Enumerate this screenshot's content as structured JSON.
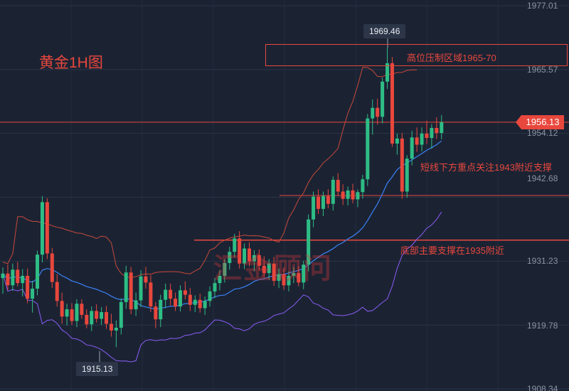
{
  "title": "黄金1H图",
  "watermark": "汇金顾问",
  "colors": {
    "background": "#1b2333",
    "up": "#2ebd85",
    "down": "#e8473d",
    "ma": "#3b82f6",
    "boll_upper": "#c8483a",
    "boll_lower": "#8b5cf6",
    "annotation": "#e8473d"
  },
  "last_price": "1956.13",
  "high_flag": "1969.46",
  "low_flag": "1915.13",
  "annotations": {
    "zone": "高位压制区域1965-70",
    "support1": "短线下方重点关注1943附近支撑",
    "support2": "底部主要支撑在1935附近"
  },
  "chart_data": {
    "type": "candlestick",
    "symbol": "黄金",
    "timeframe": "1H",
    "title": "黄金1H图",
    "y_ticks": [
      "1977.01",
      "1965.57",
      "1954.12",
      "1942.68",
      "1931.23",
      "1919.78",
      "1908.34"
    ],
    "ylim": [
      1908.34,
      1977.01
    ],
    "last_price": 1956.13,
    "marked_high": 1969.46,
    "marked_low": 1915.13,
    "levels": {
      "resistance_zone": [
        1965,
        1970
      ],
      "short_term_support": 1943,
      "main_support": 1935
    },
    "candles": [
      [
        1928.2,
        1930.1,
        1925.4,
        1929.0
      ],
      [
        1929.0,
        1930.6,
        1926.1,
        1926.9
      ],
      [
        1926.9,
        1930.8,
        1925.9,
        1929.7
      ],
      [
        1929.7,
        1931.1,
        1926.7,
        1927.3
      ],
      [
        1927.3,
        1929.8,
        1924.9,
        1928.6
      ],
      [
        1928.6,
        1929.9,
        1923.7,
        1924.5
      ],
      [
        1924.5,
        1927.7,
        1922.0,
        1926.3
      ],
      [
        1926.3,
        1933.1,
        1925.1,
        1932.4
      ],
      [
        1932.4,
        1942.9,
        1931.0,
        1941.8
      ],
      [
        1941.8,
        1942.5,
        1931.6,
        1932.6
      ],
      [
        1932.6,
        1933.6,
        1926.4,
        1927.5
      ],
      [
        1927.5,
        1928.9,
        1923.1,
        1924.1
      ],
      [
        1924.1,
        1925.6,
        1920.0,
        1921.3
      ],
      [
        1921.3,
        1923.6,
        1919.7,
        1922.6
      ],
      [
        1922.6,
        1923.7,
        1919.8,
        1920.5
      ],
      [
        1920.5,
        1924.4,
        1919.4,
        1923.6
      ],
      [
        1923.6,
        1924.4,
        1920.9,
        1921.6
      ],
      [
        1921.6,
        1922.6,
        1919.2,
        1919.9
      ],
      [
        1919.9,
        1923.1,
        1918.7,
        1922.3
      ],
      [
        1922.3,
        1923.5,
        1920.2,
        1920.9
      ],
      [
        1920.9,
        1923.0,
        1919.8,
        1922.1
      ],
      [
        1922.1,
        1923.2,
        1919.1,
        1920.0
      ],
      [
        1920.0,
        1921.8,
        1917.7,
        1918.8
      ],
      [
        1918.8,
        1920.6,
        1915.8,
        1919.3
      ],
      [
        1919.3,
        1924.6,
        1918.1,
        1923.9
      ],
      [
        1923.9,
        1930.4,
        1922.7,
        1929.2
      ],
      [
        1929.2,
        1930.2,
        1921.7,
        1922.6
      ],
      [
        1922.6,
        1925.6,
        1921.4,
        1924.2
      ],
      [
        1924.2,
        1929.6,
        1923.0,
        1928.5
      ],
      [
        1928.5,
        1930.2,
        1926.3,
        1927.4
      ],
      [
        1927.4,
        1928.7,
        1922.1,
        1923.1
      ],
      [
        1923.1,
        1923.9,
        1919.2,
        1920.8
      ],
      [
        1920.8,
        1925.2,
        1919.4,
        1924.3
      ],
      [
        1924.3,
        1927.2,
        1922.8,
        1926.1
      ],
      [
        1926.1,
        1927.2,
        1923.3,
        1924.5
      ],
      [
        1924.5,
        1925.6,
        1922.3,
        1923.1
      ],
      [
        1923.1,
        1926.9,
        1922.2,
        1926.0
      ],
      [
        1926.0,
        1927.6,
        1924.4,
        1925.2
      ],
      [
        1925.2,
        1926.4,
        1922.3,
        1923.4
      ],
      [
        1923.4,
        1925.1,
        1922.1,
        1924.3
      ],
      [
        1924.3,
        1925.4,
        1922.0,
        1922.8
      ],
      [
        1922.8,
        1924.9,
        1921.6,
        1924.1
      ],
      [
        1924.1,
        1926.7,
        1923.1,
        1925.8
      ],
      [
        1925.8,
        1928.2,
        1924.6,
        1927.3
      ],
      [
        1927.3,
        1929.6,
        1926.0,
        1928.6
      ],
      [
        1928.6,
        1931.6,
        1927.4,
        1930.9
      ],
      [
        1930.9,
        1933.8,
        1929.7,
        1932.9
      ],
      [
        1932.9,
        1936.1,
        1931.9,
        1935.3
      ],
      [
        1935.3,
        1936.6,
        1929.9,
        1930.8
      ],
      [
        1930.8,
        1934.4,
        1929.8,
        1933.5
      ],
      [
        1933.5,
        1934.6,
        1930.3,
        1931.2
      ],
      [
        1931.2,
        1933.2,
        1929.4,
        1932.3
      ],
      [
        1932.3,
        1933.3,
        1929.6,
        1930.4
      ],
      [
        1930.4,
        1932.1,
        1928.3,
        1929.1
      ],
      [
        1929.1,
        1931.6,
        1927.9,
        1930.8
      ],
      [
        1930.8,
        1932.0,
        1926.8,
        1927.7
      ],
      [
        1927.7,
        1929.9,
        1926.4,
        1928.9
      ],
      [
        1928.9,
        1930.1,
        1926.1,
        1926.9
      ],
      [
        1926.9,
        1929.4,
        1925.8,
        1928.6
      ],
      [
        1928.6,
        1930.2,
        1927.3,
        1929.1
      ],
      [
        1929.1,
        1930.3,
        1926.7,
        1927.4
      ],
      [
        1927.4,
        1931.3,
        1926.2,
        1930.6
      ],
      [
        1930.6,
        1939.6,
        1929.4,
        1938.7
      ],
      [
        1938.7,
        1943.7,
        1937.3,
        1942.8
      ],
      [
        1942.8,
        1944.1,
        1939.7,
        1940.6
      ],
      [
        1940.6,
        1943.7,
        1939.3,
        1942.9
      ],
      [
        1942.9,
        1944.1,
        1940.7,
        1941.5
      ],
      [
        1941.5,
        1946.4,
        1940.3,
        1945.8
      ],
      [
        1945.8,
        1947.0,
        1942.9,
        1943.7
      ],
      [
        1943.7,
        1945.0,
        1941.3,
        1942.4
      ],
      [
        1942.4,
        1944.6,
        1941.2,
        1943.9
      ],
      [
        1943.9,
        1945.1,
        1941.6,
        1942.3
      ],
      [
        1942.3,
        1944.1,
        1940.9,
        1943.6
      ],
      [
        1943.6,
        1946.7,
        1942.4,
        1945.9
      ],
      [
        1945.9,
        1957.6,
        1944.7,
        1956.8
      ],
      [
        1956.8,
        1960.2,
        1953.9,
        1958.7
      ],
      [
        1958.7,
        1960.3,
        1955.7,
        1957.1
      ],
      [
        1957.1,
        1964.1,
        1955.9,
        1963.4
      ],
      [
        1963.4,
        1969.5,
        1962.1,
        1966.7
      ],
      [
        1966.7,
        1967.8,
        1951.7,
        1952.3
      ],
      [
        1952.3,
        1954.1,
        1950.3,
        1953.2
      ],
      [
        1953.2,
        1954.2,
        1942.4,
        1943.7
      ],
      [
        1943.7,
        1950.2,
        1942.6,
        1949.6
      ],
      [
        1949.6,
        1954.6,
        1948.4,
        1953.4
      ],
      [
        1953.4,
        1955.2,
        1950.8,
        1952.1
      ],
      [
        1952.1,
        1955.2,
        1950.9,
        1954.1
      ],
      [
        1954.1,
        1956.4,
        1952.2,
        1953.3
      ],
      [
        1953.3,
        1955.8,
        1951.4,
        1955.1
      ],
      [
        1955.1,
        1957.0,
        1953.1,
        1954.2
      ],
      [
        1954.2,
        1957.4,
        1953.1,
        1956.13
      ]
    ]
  }
}
